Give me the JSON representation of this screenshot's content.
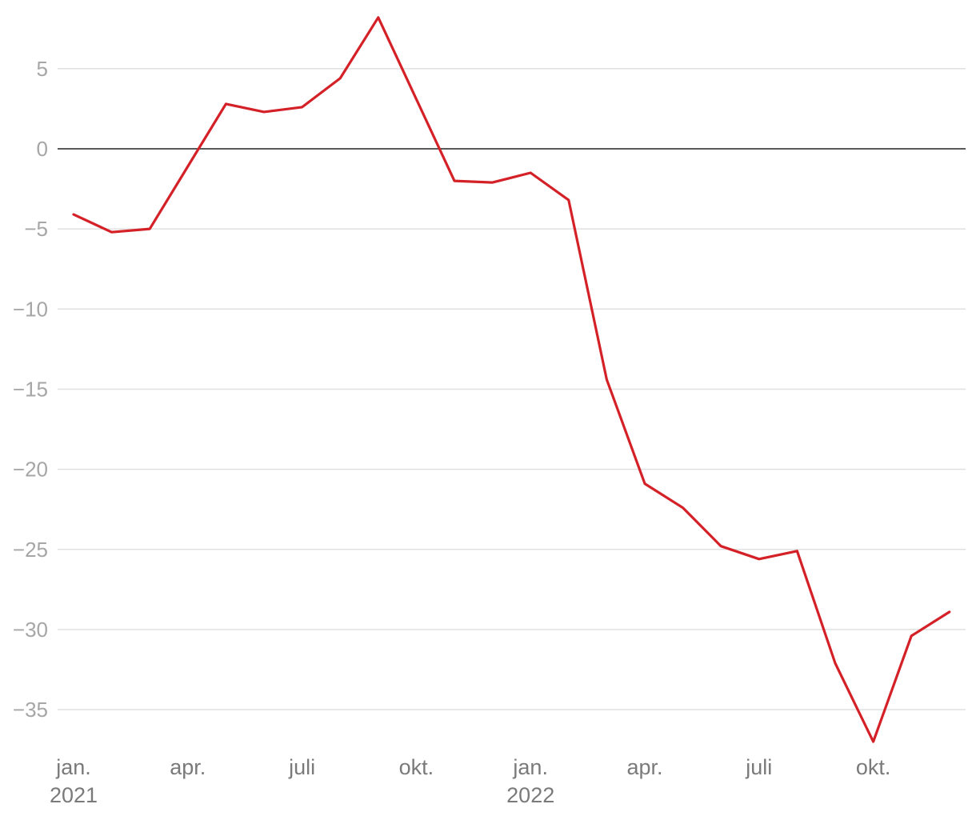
{
  "chart_data": {
    "type": "line",
    "x": [
      "2021-01",
      "2021-02",
      "2021-03",
      "2021-04",
      "2021-05",
      "2021-06",
      "2021-07",
      "2021-08",
      "2021-09",
      "2021-10",
      "2021-11",
      "2021-12",
      "2022-01",
      "2022-02",
      "2022-03",
      "2022-04",
      "2022-05",
      "2022-06",
      "2022-07",
      "2022-08",
      "2022-09",
      "2022-10",
      "2022-11",
      "2022-12"
    ],
    "series": [
      {
        "values": [
          -4.1,
          -5.2,
          -5.0,
          -1.1,
          2.8,
          2.3,
          2.6,
          4.4,
          8.2,
          3.1,
          -2.0,
          -2.1,
          -1.5,
          -3.2,
          -14.4,
          -20.9,
          -22.4,
          -24.8,
          -25.6,
          -25.1,
          -32.1,
          -37.0,
          -30.4,
          -28.9
        ],
        "color": "#d42127"
      }
    ],
    "ylim": [
      -37.5,
      8.5
    ],
    "yticks": [
      5,
      0,
      -5,
      -10,
      -15,
      -20,
      -25,
      -30,
      -35
    ],
    "ytick_labels": [
      "5",
      "0",
      "−5",
      "−10",
      "−15",
      "−20",
      "−25",
      "−30",
      "−35"
    ],
    "xticks": [
      {
        "x": "2021-01",
        "line1": "jan.",
        "line2": "2021"
      },
      {
        "x": "2021-04",
        "line1": "apr.",
        "line2": ""
      },
      {
        "x": "2021-07",
        "line1": "juli",
        "line2": ""
      },
      {
        "x": "2021-10",
        "line1": "okt.",
        "line2": ""
      },
      {
        "x": "2022-01",
        "line1": "jan.",
        "line2": "2022"
      },
      {
        "x": "2022-04",
        "line1": "apr.",
        "line2": ""
      },
      {
        "x": "2022-07",
        "line1": "juli",
        "line2": ""
      },
      {
        "x": "2022-10",
        "line1": "okt.",
        "line2": ""
      }
    ],
    "grid": true,
    "zero_line_color": "#222222",
    "title": "",
    "xlabel": "",
    "ylabel": ""
  }
}
